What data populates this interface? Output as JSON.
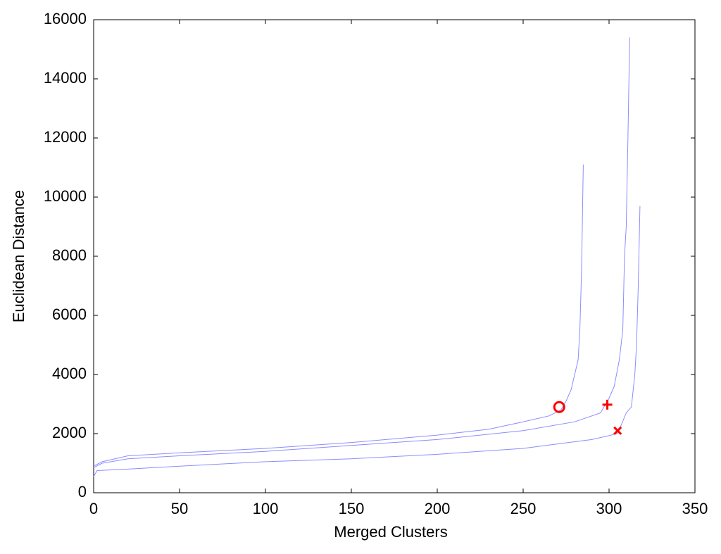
{
  "chart_data": {
    "type": "line",
    "xlabel": "Merged Clusters",
    "ylabel": "Euclidean Distance",
    "xlim": [
      0,
      350
    ],
    "xticks": [
      0,
      50,
      100,
      150,
      200,
      250,
      300,
      350
    ],
    "ylim": [
      0,
      16000
    ],
    "yticks": [
      0,
      2000,
      4000,
      6000,
      8000,
      10000,
      12000,
      14000,
      16000
    ],
    "grid": false,
    "series": [
      {
        "color": "#8c8cff",
        "x": [
          0,
          5,
          20,
          50,
          100,
          150,
          200,
          230,
          250,
          265,
          272,
          275,
          278,
          280,
          282,
          283,
          284,
          285
        ],
        "values": [
          900,
          1050,
          1250,
          1350,
          1500,
          1700,
          1950,
          2150,
          2400,
          2600,
          2800,
          3100,
          3500,
          4000,
          4500,
          5500,
          7500,
          11100
        ]
      },
      {
        "color": "#8c8cff",
        "x": [
          0,
          5,
          20,
          50,
          100,
          150,
          200,
          250,
          280,
          295,
          300,
          303,
          306,
          308,
          309,
          310,
          311,
          312
        ],
        "values": [
          850,
          1000,
          1150,
          1250,
          1400,
          1600,
          1800,
          2100,
          2400,
          2700,
          3200,
          3600,
          4500,
          5500,
          8000,
          9000,
          12000,
          15400
        ]
      },
      {
        "color": "#8c8cff",
        "x": [
          0,
          2,
          20,
          50,
          100,
          150,
          200,
          250,
          290,
          305,
          310,
          313,
          315,
          316,
          317,
          318
        ],
        "values": [
          550,
          750,
          800,
          900,
          1050,
          1150,
          1300,
          1500,
          1800,
          2000,
          2700,
          2900,
          4000,
          5000,
          7000,
          9700
        ]
      }
    ],
    "markers": [
      {
        "symbol": "circle",
        "color": "#ff0000",
        "x": 271,
        "y": 2900
      },
      {
        "symbol": "plus",
        "color": "#ff0000",
        "x": 299,
        "y": 2980
      },
      {
        "symbol": "cross",
        "color": "#ff0000",
        "x": 305,
        "y": 2100
      }
    ]
  }
}
